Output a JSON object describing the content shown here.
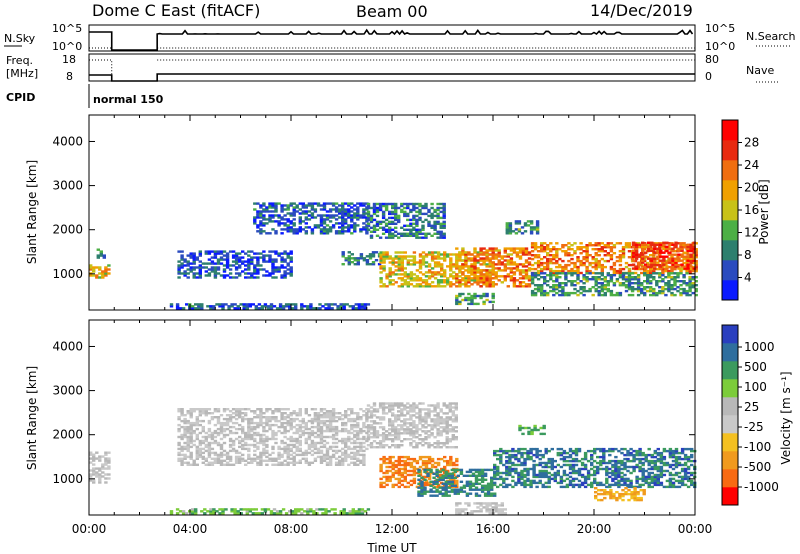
{
  "header": {
    "title": "Dome C East (fitACF)",
    "beam": "Beam 00",
    "date": "14/Dec/2019"
  },
  "strips": {
    "nsky": {
      "label": "N.Sky",
      "left_ticks": [
        "10^5",
        "10^0"
      ],
      "right_label": "N.Search",
      "right_ticks": [
        "10^5",
        "10^0"
      ]
    },
    "freq": {
      "label_line1": "Freq.",
      "label_line2": "[MHz]",
      "left_ticks": [
        "18",
        "8"
      ],
      "right_label": "Nave",
      "right_ticks": [
        "80",
        "0"
      ]
    },
    "cpid": {
      "label": "CPID",
      "text": "normal 150"
    }
  },
  "colors": {
    "power": [
      "#0a1aff",
      "#2a4bbf",
      "#2d7f6e",
      "#4caf45",
      "#c8c218",
      "#f0a000",
      "#f06e10",
      "#e82a10",
      "#ff0000"
    ],
    "velocity": [
      "#ff0000",
      "#f86a12",
      "#f09a1e",
      "#f4c020",
      "#c9c9c9",
      "#b8b8b8",
      "#7ccc3a",
      "#3b9a5e",
      "#2f6e9e",
      "#2a3fbf"
    ],
    "groundscatter": "#bebebe"
  },
  "chart_data": [
    {
      "type": "heatmap",
      "name": "power",
      "ylabel": "Slant Range [km]",
      "ylim": [
        180,
        4600
      ],
      "yticks": [
        "1000",
        "2000",
        "3000",
        "4000"
      ],
      "ytick_values": [
        1000,
        2000,
        3000,
        4000
      ],
      "xlim": [
        0,
        24
      ],
      "colorbar": {
        "label": "Power [dB]",
        "range": [
          0,
          32
        ],
        "ticks": [
          "4",
          "8",
          "12",
          "16",
          "20",
          "24",
          "28"
        ],
        "tick_values": [
          4,
          8,
          12,
          16,
          20,
          24,
          28
        ]
      },
      "blobs": [
        {
          "t0": 0.0,
          "t1": 0.8,
          "r0": 900,
          "r1": 1200,
          "val": 18
        },
        {
          "t0": 0.3,
          "t1": 0.6,
          "r0": 1350,
          "r1": 1550,
          "val": 8
        },
        {
          "t0": 3.2,
          "t1": 11.0,
          "r0": 200,
          "r1": 320,
          "val": 6
        },
        {
          "t0": 3.5,
          "t1": 8.0,
          "r0": 900,
          "r1": 1500,
          "val": 5
        },
        {
          "t0": 6.5,
          "t1": 11.0,
          "r0": 1900,
          "r1": 2600,
          "val": 6
        },
        {
          "t0": 10.0,
          "t1": 11.5,
          "r0": 1200,
          "r1": 1500,
          "val": 8
        },
        {
          "t0": 11.0,
          "t1": 14.0,
          "r0": 1800,
          "r1": 2600,
          "val": 8
        },
        {
          "t0": 11.5,
          "t1": 16.0,
          "r0": 700,
          "r1": 1500,
          "val": 18
        },
        {
          "t0": 14.5,
          "t1": 16.0,
          "r0": 300,
          "r1": 550,
          "val": 10
        },
        {
          "t0": 14.5,
          "t1": 17.5,
          "r0": 700,
          "r1": 1600,
          "val": 22
        },
        {
          "t0": 16.5,
          "t1": 17.8,
          "r0": 1900,
          "r1": 2200,
          "val": 10
        },
        {
          "t0": 17.5,
          "t1": 24.0,
          "r0": 1000,
          "r1": 1700,
          "val": 22
        },
        {
          "t0": 17.5,
          "t1": 24.0,
          "r0": 500,
          "r1": 1000,
          "val": 10
        },
        {
          "t0": 21.5,
          "t1": 24.0,
          "r0": 1100,
          "r1": 1700,
          "val": 26
        }
      ]
    },
    {
      "type": "heatmap",
      "name": "velocity",
      "ylabel": "Slant Range [km]",
      "ylim": [
        180,
        4600
      ],
      "yticks": [
        "1000",
        "2000",
        "3000",
        "4000"
      ],
      "ytick_values": [
        1000,
        2000,
        3000,
        4000
      ],
      "xlim": [
        0,
        24
      ],
      "xticks": [
        "00:00",
        "04:00",
        "08:00",
        "12:00",
        "16:00",
        "20:00",
        "00:00"
      ],
      "xtick_values": [
        0,
        4,
        8,
        12,
        16,
        20,
        24
      ],
      "xlabel": "Time UT",
      "colorbar": {
        "label": "Velocity [m s⁻¹]",
        "ticks": [
          "1000",
          "500",
          "100",
          "25",
          "-25",
          "-100",
          "-500",
          "-1000"
        ]
      },
      "blobs": [
        {
          "t0": 0.0,
          "t1": 0.8,
          "r0": 900,
          "r1": 1600,
          "val": 4.5
        },
        {
          "t0": 3.2,
          "t1": 11.0,
          "r0": 200,
          "r1": 330,
          "val": 6.2
        },
        {
          "t0": 3.5,
          "t1": 11.0,
          "r0": 1300,
          "r1": 2600,
          "val": 4.5
        },
        {
          "t0": 11.0,
          "t1": 14.5,
          "r0": 1700,
          "r1": 2700,
          "val": 4.5
        },
        {
          "t0": 11.5,
          "t1": 14.5,
          "r0": 800,
          "r1": 1500,
          "val": 1.5
        },
        {
          "t0": 13.0,
          "t1": 16.0,
          "r0": 600,
          "r1": 1200,
          "val": 7.5
        },
        {
          "t0": 14.5,
          "t1": 16.5,
          "r0": 200,
          "r1": 450,
          "val": 4.5
        },
        {
          "t0": 16.0,
          "t1": 24.0,
          "r0": 800,
          "r1": 1700,
          "val": 7.8
        },
        {
          "t0": 17.0,
          "t1": 18.0,
          "r0": 2000,
          "r1": 2200,
          "val": 6.5
        },
        {
          "t0": 20.0,
          "t1": 22.0,
          "r0": 500,
          "r1": 800,
          "val": 2.5
        }
      ]
    }
  ]
}
